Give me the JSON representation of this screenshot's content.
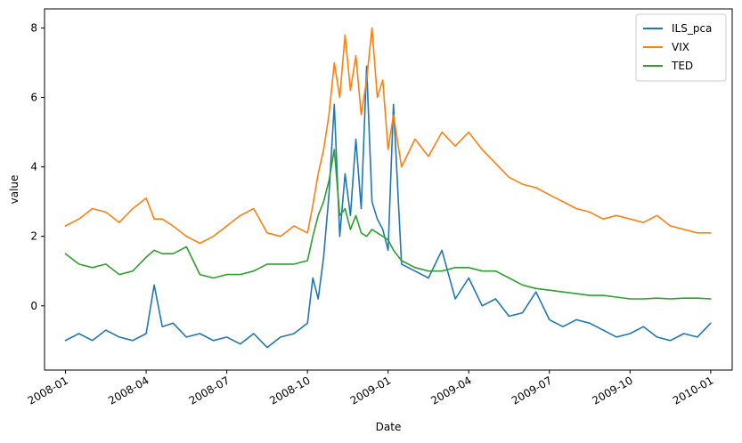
{
  "chart_data": {
    "type": "line",
    "title": "",
    "xlabel": "Date",
    "ylabel": "value",
    "x_ticks": [
      "2008-01",
      "2008-04",
      "2008-07",
      "2008-10",
      "2009-01",
      "2009-04",
      "2009-07",
      "2009-10",
      "2010-01"
    ],
    "x_tick_positions": [
      0,
      3,
      6,
      9,
      12,
      15,
      18,
      21,
      24
    ],
    "y_ticks": [
      0,
      2,
      4,
      6,
      8
    ],
    "xlim": [
      -0.78,
      24.8
    ],
    "ylim": [
      -1.85,
      8.55
    ],
    "grid": false,
    "legend_position": "upper right",
    "x_months": [
      0,
      0.5,
      1,
      1.5,
      2,
      2.5,
      3,
      3.3,
      3.6,
      4,
      4.5,
      5,
      5.5,
      6,
      6.5,
      7,
      7.5,
      8,
      8.5,
      9,
      9.2,
      9.4,
      9.6,
      9.8,
      10,
      10.2,
      10.4,
      10.6,
      10.8,
      11,
      11.2,
      11.4,
      11.6,
      11.8,
      12,
      12.2,
      12.5,
      13,
      13.5,
      14,
      14.5,
      15,
      15.5,
      16,
      16.5,
      17,
      17.5,
      18,
      18.5,
      19,
      19.5,
      20,
      20.5,
      21,
      21.5,
      22,
      22.5,
      23,
      23.5,
      24
    ],
    "series": [
      {
        "name": "ILS_pca",
        "color": "#1f77b4",
        "values": [
          -1.0,
          -0.8,
          -1.0,
          -0.7,
          -0.9,
          -1.0,
          -0.8,
          0.6,
          -0.6,
          -0.5,
          -0.9,
          -0.8,
          -1.0,
          -0.9,
          -1.1,
          -0.8,
          -1.2,
          -0.9,
          -0.8,
          -0.5,
          0.8,
          0.2,
          1.4,
          3.2,
          5.8,
          2.0,
          3.8,
          2.6,
          4.8,
          2.8,
          6.9,
          3.0,
          2.5,
          2.2,
          1.6,
          5.8,
          1.2,
          1.0,
          0.8,
          1.6,
          0.2,
          0.8,
          0.0,
          0.2,
          -0.3,
          -0.2,
          0.4,
          -0.4,
          -0.6,
          -0.4,
          -0.5,
          -0.7,
          -0.9,
          -0.8,
          -0.6,
          -0.9,
          -1.0,
          -0.8,
          -0.9,
          -0.5
        ]
      },
      {
        "name": "VIX",
        "color": "#ff7f0e",
        "values": [
          2.3,
          2.5,
          2.8,
          2.7,
          2.4,
          2.8,
          3.1,
          2.5,
          2.5,
          2.3,
          2.0,
          1.8,
          2.0,
          2.3,
          2.6,
          2.8,
          2.1,
          2.0,
          2.3,
          2.1,
          2.9,
          3.8,
          4.5,
          5.5,
          7.0,
          6.0,
          7.8,
          6.2,
          7.2,
          5.5,
          6.5,
          8.0,
          6.0,
          6.5,
          4.5,
          5.5,
          4.0,
          4.8,
          4.3,
          5.0,
          4.6,
          5.0,
          4.5,
          4.1,
          3.7,
          3.5,
          3.4,
          3.2,
          3.0,
          2.8,
          2.7,
          2.5,
          2.6,
          2.5,
          2.4,
          2.6,
          2.3,
          2.2,
          2.1,
          2.1
        ]
      },
      {
        "name": "TED",
        "color": "#2ca02c",
        "values": [
          1.5,
          1.2,
          1.1,
          1.2,
          0.9,
          1.0,
          1.4,
          1.6,
          1.5,
          1.5,
          1.7,
          0.9,
          0.8,
          0.9,
          0.9,
          1.0,
          1.2,
          1.2,
          1.2,
          1.3,
          2.0,
          2.6,
          3.0,
          3.6,
          4.5,
          2.6,
          2.8,
          2.2,
          2.6,
          2.1,
          2.0,
          2.2,
          2.1,
          2.0,
          1.9,
          1.6,
          1.3,
          1.1,
          1.0,
          1.0,
          1.1,
          1.1,
          1.0,
          1.0,
          0.8,
          0.6,
          0.5,
          0.45,
          0.4,
          0.35,
          0.3,
          0.3,
          0.25,
          0.2,
          0.2,
          0.22,
          0.2,
          0.22,
          0.22,
          0.2
        ]
      }
    ]
  }
}
